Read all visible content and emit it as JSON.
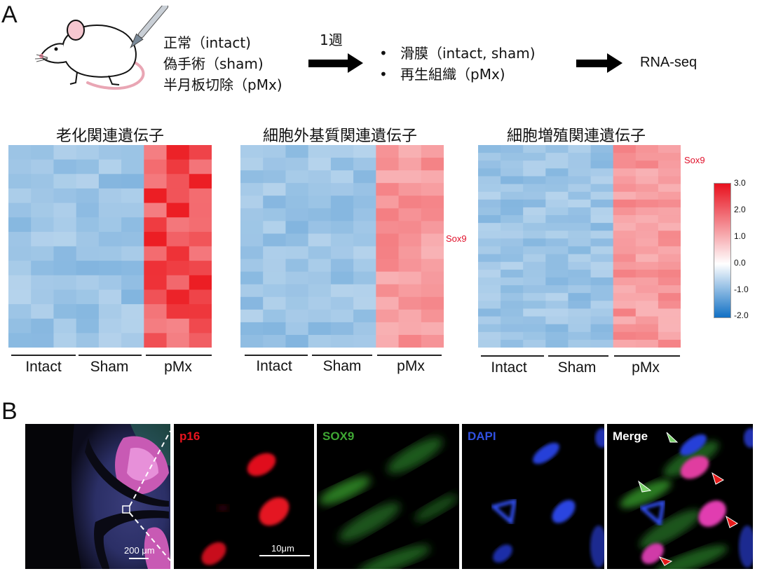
{
  "panel_a": {
    "letter": "A"
  },
  "panel_b": {
    "letter": "B"
  },
  "conditions": [
    "正常（intact)",
    "偽手術（sham)",
    "半月板切除（pMx)"
  ],
  "arrow_label": "1週",
  "samples": [
    "滑膜（intact, sham)",
    "再生組織（pMx)"
  ],
  "bullet": "•",
  "output": "RNA-seq",
  "heatmaps": [
    {
      "title": "老化関連遺伝子",
      "gene_label": "",
      "groups": [
        "Intact",
        "Sham",
        "pMx"
      ]
    },
    {
      "title": "細胞外基質関連遺伝子",
      "gene_label": "Sox9",
      "groups": [
        "Intact",
        "Sham",
        "pMx"
      ]
    },
    {
      "title": "細胞増殖関連遺伝子",
      "gene_label": "Sox9",
      "groups": [
        "Intact",
        "Sham",
        "pMx"
      ]
    }
  ],
  "colorbar": {
    "ticks": [
      "3.0",
      "2.0",
      "1.0",
      "0.0",
      "-1.0",
      "-2.0"
    ],
    "colors": {
      "high": "#e8111e",
      "mid": "#ffffff",
      "low": "#1170c4"
    }
  },
  "micro": {
    "overview_scale": "200 μm",
    "channels": [
      {
        "label": "p16",
        "color": "#e8141e"
      },
      {
        "label": "SOX9",
        "color": "#3fa834"
      },
      {
        "label": "DAPI",
        "color": "#3050e0"
      },
      {
        "label": "Merge",
        "color": "#ffffff"
      }
    ],
    "detail_scale": "10μm"
  }
}
